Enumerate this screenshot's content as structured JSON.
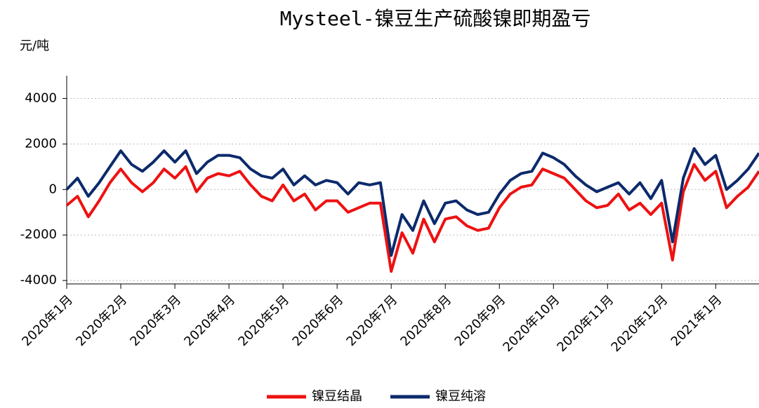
{
  "chart_data": {
    "type": "line",
    "title": "Mysteel-镍豆生产硫酸镍即期盈亏",
    "y_label": "元/吨",
    "categories": [
      "2020年1月",
      null,
      null,
      null,
      null,
      "2020年2月",
      null,
      null,
      null,
      null,
      "2020年3月",
      null,
      null,
      null,
      null,
      "2020年4月",
      null,
      null,
      null,
      null,
      "2020年5月",
      null,
      null,
      null,
      null,
      "2020年6月",
      null,
      null,
      null,
      null,
      "2020年7月",
      null,
      null,
      null,
      null,
      "2020年8月",
      null,
      null,
      null,
      null,
      "2020年9月",
      null,
      null,
      null,
      null,
      "2020年10月",
      null,
      null,
      null,
      null,
      "2020年11月",
      null,
      null,
      null,
      null,
      "2020年12月",
      null,
      null,
      null,
      null,
      "2021年1月",
      null,
      null,
      null,
      null
    ],
    "series": [
      {
        "name": "镍豆结晶",
        "color": "#ee1111",
        "values": [
          -700,
          -300,
          -1200,
          -500,
          300,
          900,
          300,
          -100,
          300,
          900,
          500,
          1000,
          -100,
          500,
          700,
          600,
          800,
          200,
          -300,
          -500,
          200,
          -500,
          -200,
          -900,
          -500,
          -500,
          -1000,
          -800,
          -600,
          -600,
          -3600,
          -1900,
          -2800,
          -1300,
          -2300,
          -1300,
          -1200,
          -1600,
          -1800,
          -1700,
          -800,
          -200,
          100,
          200,
          900,
          700,
          500,
          0,
          -500,
          -800,
          -700,
          -200,
          -900,
          -600,
          -1100,
          -600,
          -3100,
          -100,
          1100,
          400,
          800,
          -800,
          -300,
          100,
          800
        ]
      },
      {
        "name": "镍豆纯溶",
        "color": "#0c2a6b",
        "values": [
          0,
          500,
          -300,
          300,
          1000,
          1700,
          1100,
          800,
          1200,
          1700,
          1200,
          1700,
          700,
          1200,
          1500,
          1500,
          1400,
          900,
          600,
          500,
          900,
          200,
          600,
          200,
          400,
          300,
          -200,
          300,
          200,
          300,
          -2900,
          -1100,
          -1800,
          -500,
          -1500,
          -600,
          -500,
          -900,
          -1100,
          -1000,
          -200,
          400,
          700,
          800,
          1600,
          1400,
          1100,
          600,
          200,
          -100,
          100,
          300,
          -200,
          300,
          -400,
          400,
          -2300,
          500,
          1800,
          1100,
          1500,
          0,
          400,
          900,
          1600
        ]
      }
    ],
    "ylim": [
      -4150,
      5000
    ],
    "yticks": [
      -4000,
      -2000,
      0,
      2000,
      4000
    ],
    "grid": true
  }
}
